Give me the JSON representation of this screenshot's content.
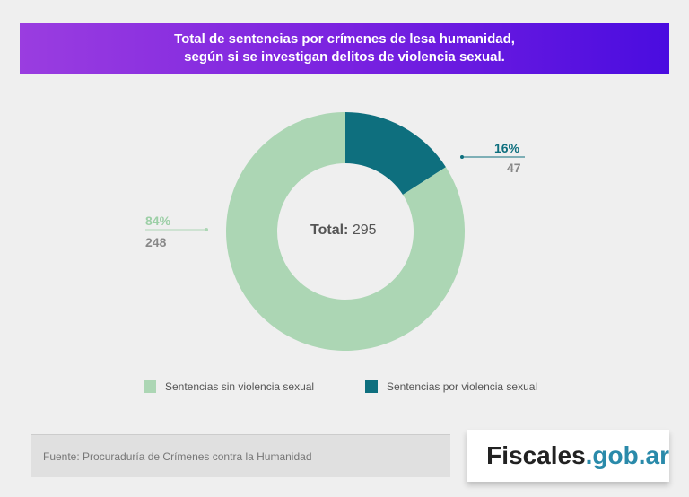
{
  "chart_data": {
    "type": "pie",
    "title": "Total de sentencias por crímenes de lesa humanidad,",
    "subtitle": "según si se investigan delitos de violencia sexual.",
    "total_label": "Total:",
    "total_value": "295",
    "slices": [
      {
        "name": "Sentencias por violencia sexual",
        "value": 47,
        "percent": "16%",
        "color": "#0e6f7e"
      },
      {
        "name": "Sentencias sin violencia sexual",
        "value": 248,
        "percent": "84%",
        "color": "#acd6b4"
      }
    ],
    "legend": "bottom"
  },
  "source": "Fuente: Procuraduría de Crímenes contra la Humanidad",
  "logo": {
    "main": "Fiscales",
    "suffix": ".gob.ar"
  }
}
